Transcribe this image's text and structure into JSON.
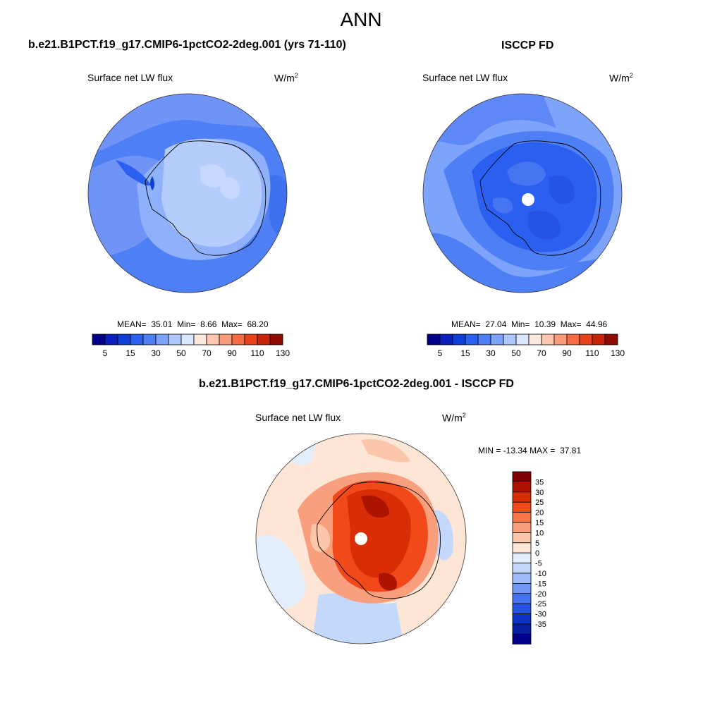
{
  "title": "ANN",
  "colors": {
    "abs_scale": [
      "#00008b",
      "#0a1fbe",
      "#0e3fd8",
      "#2b5ff0",
      "#4f7ff5",
      "#7ea3fa",
      "#aec7fd",
      "#d9e7ff",
      "#fde9dc",
      "#fcc7ae",
      "#f99c7a",
      "#f56c45",
      "#e8421d",
      "#c8240a",
      "#8f0b00"
    ],
    "diff_scale": [
      "#7d0000",
      "#ad1400",
      "#d92d05",
      "#f2491b",
      "#f77549",
      "#fa9f7e",
      "#fcc6ab",
      "#fde6d6",
      "#e3eefc",
      "#c4d8fc",
      "#9ebcfa",
      "#7199f5",
      "#4774f0",
      "#2453e6",
      "#0b33c8",
      "#081ea0",
      "#00008b"
    ]
  },
  "panels": {
    "model": {
      "title": "b.e21.B1PCT.f19_g17.CMIP6-1pctCO2-2deg.001 (yrs 71-110)",
      "variable": "Surface net LW flux",
      "units": "W/m",
      "units_exp": "2",
      "mean_label": "MEAN=",
      "mean": "35.01",
      "min_label": "Min=",
      "min": "8.66",
      "max_label": "Max=",
      "max": "68.20"
    },
    "obs": {
      "title": "ISCCP FD",
      "variable": "Surface net LW flux",
      "units": "W/m",
      "units_exp": "2",
      "mean_label": "MEAN=",
      "mean": "27.04",
      "min_label": "Min=",
      "min": "10.39",
      "max_label": "Max=",
      "max": "44.96"
    },
    "diff": {
      "title": "b.e21.B1PCT.f19_g17.CMIP6-1pctCO2-2deg.001 - ISCCP FD",
      "variable": "Surface net LW flux",
      "units": "W/m",
      "units_exp": "2",
      "min_label": "MIN =",
      "min": "-13.34",
      "max_label": "MAX =",
      "max": "37.81"
    }
  },
  "abs_colorbar_labels": [
    "5",
    "15",
    "30",
    "50",
    "70",
    "90",
    "110",
    "130"
  ],
  "diff_colorbar_labels": [
    "35",
    "30",
    "25",
    "20",
    "15",
    "10",
    "5",
    "0",
    "-5",
    "-10",
    "-15",
    "-20",
    "-25",
    "-30",
    "-35"
  ]
}
